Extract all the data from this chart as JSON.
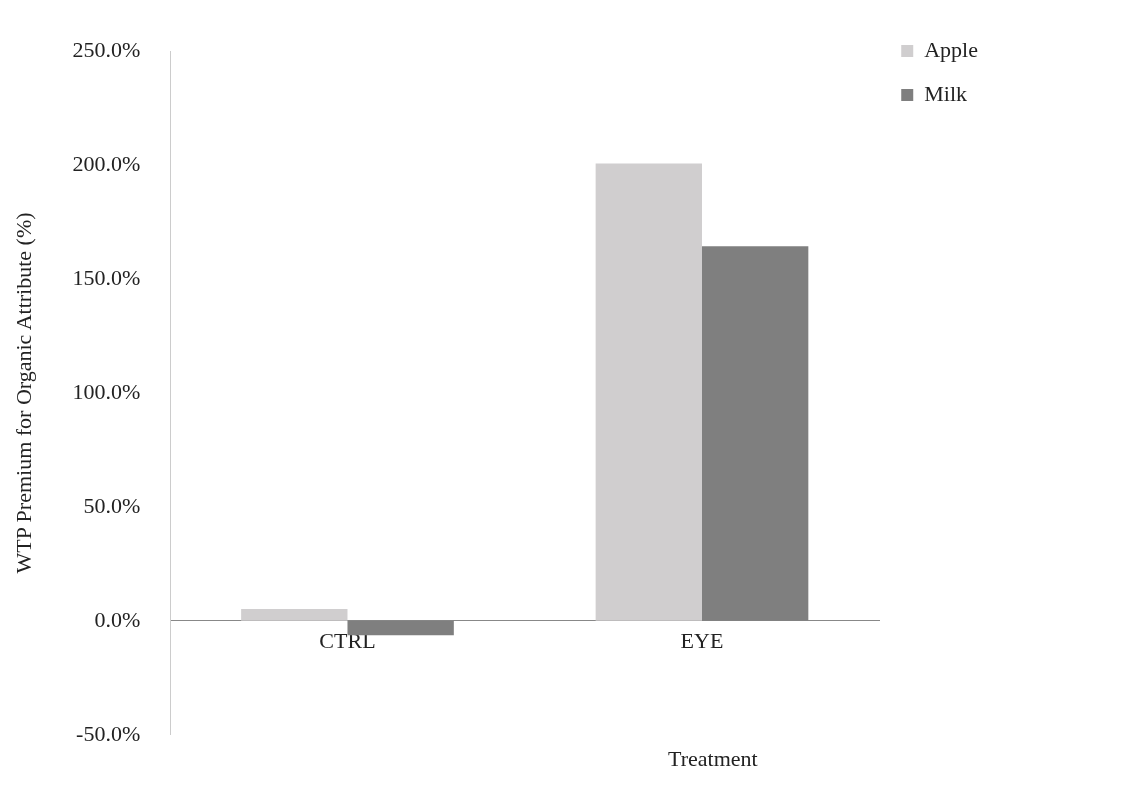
{
  "chart_data": {
    "type": "bar",
    "xlabel": "Treatment",
    "ylabel": "WTP Premium for Organic Attribute (%)",
    "categories": [
      "CTRL",
      "EYE"
    ],
    "series": [
      {
        "name": "Apple",
        "color": "#d0cecf",
        "values": [
          5.2,
          200.7
        ]
      },
      {
        "name": "Milk",
        "color": "#7f7f7f",
        "values": [
          -6.3,
          164.4
        ]
      }
    ],
    "ylim": [
      -50,
      250
    ],
    "yticks": [
      {
        "value": -50,
        "label": "-50.0%"
      },
      {
        "value": 0,
        "label": "0.0%"
      },
      {
        "value": 50,
        "label": "50.0%"
      },
      {
        "value": 100,
        "label": "100.0%"
      },
      {
        "value": 150,
        "label": "150.0%"
      },
      {
        "value": 200,
        "label": "200.0%"
      },
      {
        "value": 250,
        "label": "250.0%"
      }
    ],
    "grid": false,
    "legend": "top right"
  }
}
